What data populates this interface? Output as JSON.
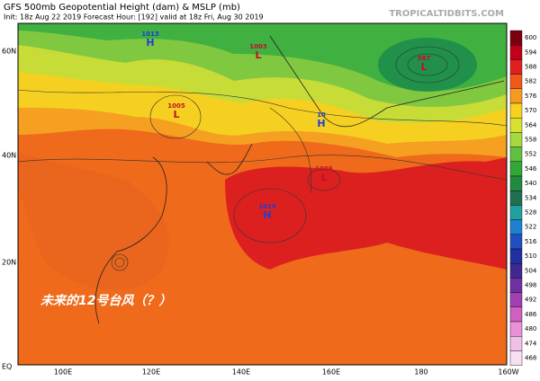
{
  "header": {
    "title": "GFS 500mb Geopotential Height (dam) & MSLP (mb)",
    "subtitle": "Init: 18z Aug 22 2019   Forecast Hour: [192]   valid at 18z Fri, Aug 30 2019",
    "watermark": "TROPICALTIDBITS.COM"
  },
  "map": {
    "lat_labels": [
      "60N",
      "40N",
      "20N",
      "EQ"
    ],
    "lon_labels": [
      "100E",
      "120E",
      "140E",
      "160E",
      "180",
      "160W"
    ],
    "centers": [
      {
        "letter": "H",
        "value": "1013",
        "color": "#1a3fd6"
      },
      {
        "letter": "L",
        "value": "1005",
        "color": "#c0102a"
      },
      {
        "letter": "L",
        "value": "1003",
        "color": "#c0102a"
      },
      {
        "letter": "L",
        "value": "987",
        "color": "#c0102a"
      },
      {
        "letter": "H",
        "value": "10",
        "color": "#1a3fd6"
      },
      {
        "letter": "L",
        "value": "1006",
        "color": "#c0102a"
      },
      {
        "letter": "H",
        "value": "1015",
        "color": "#1a3fd6"
      }
    ],
    "annotation": "未来的12号台风（？）"
  },
  "colorbar": [
    {
      "value": 600,
      "color": "#7a0010"
    },
    {
      "value": 594,
      "color": "#c00018"
    },
    {
      "value": 588,
      "color": "#e02020"
    },
    {
      "value": 582,
      "color": "#ef5a1a"
    },
    {
      "value": 576,
      "color": "#f59a20"
    },
    {
      "value": 570,
      "color": "#f8d020"
    },
    {
      "value": 564,
      "color": "#d8e030"
    },
    {
      "value": 558,
      "color": "#a8d840"
    },
    {
      "value": 552,
      "color": "#60c040"
    },
    {
      "value": 546,
      "color": "#30a838"
    },
    {
      "value": 540,
      "color": "#208a40"
    },
    {
      "value": 534,
      "color": "#207050"
    },
    {
      "value": 528,
      "color": "#20a0a0"
    },
    {
      "value": 522,
      "color": "#2080d0"
    },
    {
      "value": 516,
      "color": "#2050c0"
    },
    {
      "value": 510,
      "color": "#2030a0"
    },
    {
      "value": 504,
      "color": "#402890"
    },
    {
      "value": 498,
      "color": "#7030a0"
    },
    {
      "value": 492,
      "color": "#a040b0"
    },
    {
      "value": 486,
      "color": "#d060c0"
    },
    {
      "value": 480,
      "color": "#e890d8"
    },
    {
      "value": 474,
      "color": "#f0c0e8"
    },
    {
      "value": 468,
      "color": "#f8e0f4"
    }
  ]
}
